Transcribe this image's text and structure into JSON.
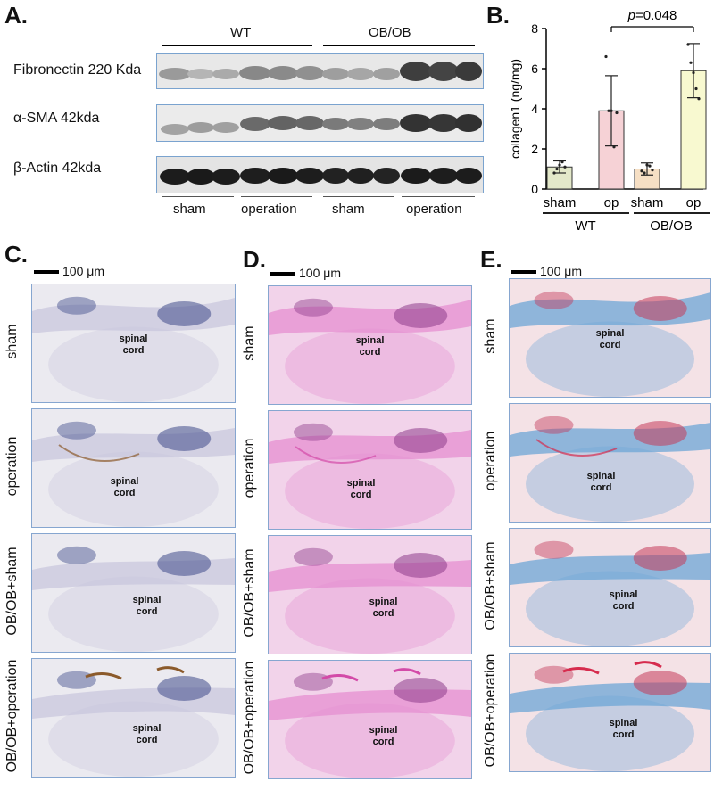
{
  "panels": {
    "a": "A.",
    "b": "B.",
    "c": "C.",
    "d": "D.",
    "e": "E."
  },
  "western": {
    "groups": [
      "WT",
      "OB/OB"
    ],
    "rows": [
      {
        "label": "Fibronectin 220 Kda"
      },
      {
        "label": "α-SMA 42kda"
      },
      {
        "label": "β-Actin 42kda"
      }
    ],
    "conditions": [
      "sham",
      "operation",
      "sham",
      "operation"
    ]
  },
  "chart_data": {
    "type": "bar",
    "ylabel": "collagen1 (ng/mg)",
    "ylim": [
      0,
      8
    ],
    "yticks": [
      0,
      2,
      4,
      6,
      8
    ],
    "categories": [
      "sham",
      "op",
      "sham",
      "op"
    ],
    "group_labels": [
      "WT",
      "OB/OB"
    ],
    "values": [
      1.1,
      3.9,
      1.0,
      5.9
    ],
    "errors": [
      0.3,
      1.75,
      0.3,
      1.35
    ],
    "bar_colors": [
      "#e3e8c9",
      "#f6d2d6",
      "#f6dfc4",
      "#f8f9d0"
    ],
    "points": [
      [
        0.8,
        1.0,
        1.2,
        1.35,
        1.1
      ],
      [
        6.6,
        3.9,
        3.9,
        2.1,
        3.8
      ],
      [
        0.9,
        0.8,
        1.2,
        1.15,
        0.95
      ],
      [
        7.2,
        6.3,
        5.8,
        5.0,
        4.5
      ]
    ],
    "annotation": {
      "label_p": "p",
      "label_rest": "=0.048",
      "from": 1,
      "to": 3
    }
  },
  "histology": {
    "scale": "100 μm",
    "rows": [
      "sham",
      "operation",
      "OB/OB+sham",
      "OB/OB+operation"
    ],
    "tissue": [
      "spinal",
      "cord"
    ]
  }
}
